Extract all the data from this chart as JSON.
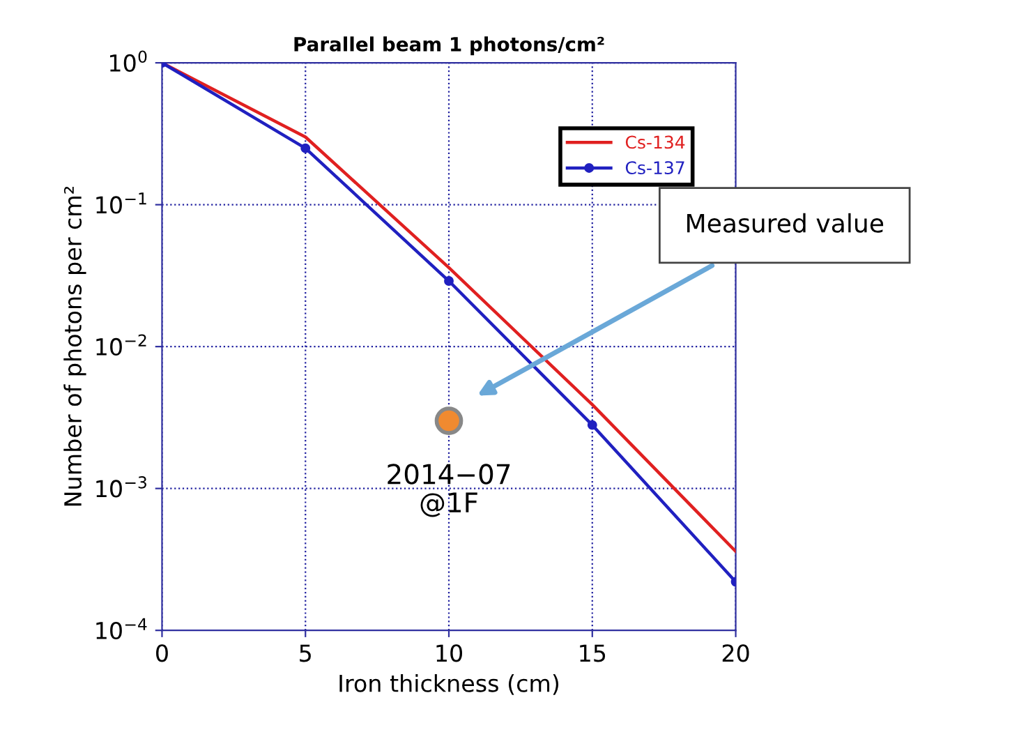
{
  "chart_data": {
    "type": "line",
    "title": "Parallel beam 1 photons/cm²",
    "xlabel": "Iron thickness (cm)",
    "ylabel": "Number of photons per cm²",
    "x": [
      0,
      5,
      10,
      15,
      20
    ],
    "series": [
      {
        "name": "Cs-134",
        "color": "#e02020",
        "values": [
          1,
          0.3,
          0.036,
          0.0039,
          0.00036
        ],
        "marker": "none"
      },
      {
        "name": "Cs-137",
        "color": "#2020c0",
        "values": [
          1,
          0.25,
          0.029,
          0.0028,
          0.00022
        ],
        "marker": "circle"
      },
      {
        "type": "scatter",
        "color": "#f08a30",
        "x": [
          10
        ],
        "values": [
          0.003
        ],
        "marker": "circle"
      }
    ],
    "annotations": [
      {
        "text": "2014−07\n@1F",
        "x": 10,
        "y": 0.003
      },
      "Measured value"
    ],
    "log": true,
    "xlim": [
      0,
      20
    ],
    "xticks": [
      0,
      5,
      10,
      15,
      20
    ],
    "ylim": [
      0.0001,
      1
    ],
    "yticks": [
      {
        "value": 0.0001,
        "label": "10$^{−4}$"
      },
      {
        "value": 0.001,
        "label": "10$^{−3}$"
      },
      {
        "value": 0.01,
        "label": "10$^{−2}$"
      },
      {
        "value": 0.1,
        "label": "10$^{−1}$"
      },
      {
        "value": 1,
        "label": "10$^{0}$"
      }
    ],
    "grid": true,
    "legend": "top right",
    "line_style": "solid"
  }
}
